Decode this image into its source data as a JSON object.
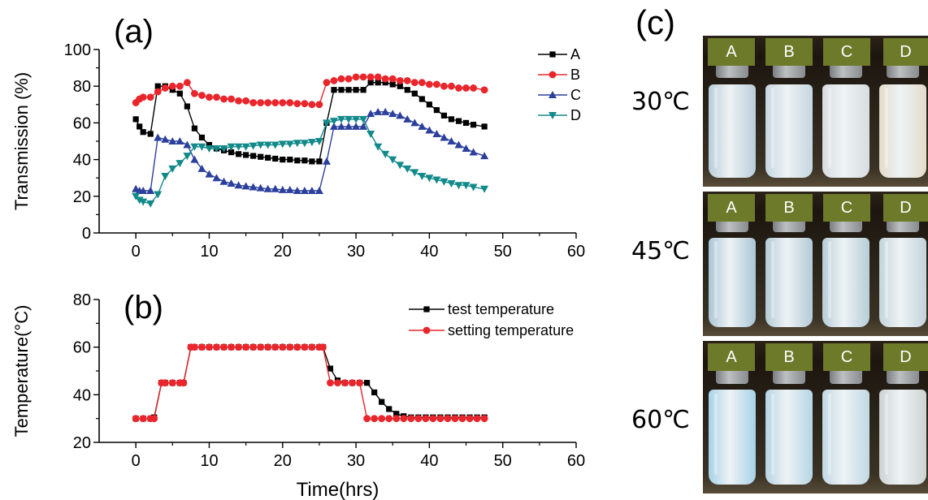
{
  "panel_letters": {
    "a": "(a)",
    "b": "(b)",
    "c": "(c)"
  },
  "photos": {
    "sample_labels": [
      "A",
      "B",
      "C",
      "D"
    ],
    "rows": [
      {
        "temperature": "30℃"
      },
      {
        "temperature": "45℃"
      },
      {
        "temperature": "60℃"
      }
    ]
  },
  "chart_data": [
    {
      "type": "line",
      "panel": "(a)",
      "xlabel": "",
      "ylabel": "Transmission (%)",
      "xlim": [
        -5,
        60
      ],
      "ylim": [
        0,
        100
      ],
      "xticks": [
        0,
        10,
        20,
        30,
        40,
        50,
        60
      ],
      "yticks": [
        0,
        20,
        40,
        60,
        80,
        100
      ],
      "legend": "top-right",
      "series": [
        {
          "name": "A",
          "color": "#000000",
          "marker": "square",
          "x": [
            0,
            0.5,
            1,
            2,
            3,
            4,
            5,
            6,
            7,
            8,
            9,
            10,
            11,
            12,
            13,
            14,
            15,
            16,
            17,
            18,
            19,
            20,
            21,
            22,
            23,
            24,
            25,
            26,
            27,
            28,
            29,
            30,
            31,
            32,
            33,
            34,
            35,
            36,
            37,
            38,
            39,
            40,
            41,
            42,
            43,
            44,
            45,
            46,
            47.5
          ],
          "y": [
            62,
            58,
            55,
            54,
            80,
            80,
            78,
            76,
            69,
            57,
            52,
            48,
            46,
            45,
            44,
            43,
            42.5,
            42,
            41.5,
            41,
            40.5,
            40,
            40,
            39.5,
            39.5,
            39,
            39,
            60,
            78,
            78,
            78,
            78,
            78,
            82,
            82,
            82,
            81,
            80,
            78,
            76,
            73,
            70,
            67,
            64,
            62,
            61,
            60,
            59,
            58
          ]
        },
        {
          "name": "B",
          "color": "#e8262c",
          "marker": "circle",
          "x": [
            0,
            0.5,
            1,
            2,
            3,
            4,
            5,
            6,
            7,
            8,
            9,
            10,
            11,
            12,
            13,
            14,
            15,
            16,
            17,
            18,
            19,
            20,
            21,
            22,
            23,
            24,
            25,
            26,
            27,
            28,
            29,
            30,
            31,
            32,
            33,
            34,
            35,
            36,
            37,
            38,
            39,
            40,
            41,
            42,
            43,
            44,
            45,
            46,
            47.5
          ],
          "y": [
            71,
            73,
            74,
            74,
            77,
            79,
            80,
            80,
            82,
            76,
            75,
            74,
            74,
            73,
            73,
            72,
            72,
            71,
            71,
            71,
            71,
            71,
            71,
            70.5,
            70.5,
            70,
            70,
            82,
            83,
            84,
            84,
            85,
            85,
            85,
            85,
            84,
            84,
            83,
            83,
            82,
            82,
            81,
            81,
            80,
            80,
            79,
            79,
            79,
            78
          ]
        },
        {
          "name": "C",
          "color": "#2b3f9c",
          "marker": "triangle-up",
          "x": [
            0,
            0.5,
            1,
            2,
            3,
            4,
            5,
            6,
            7,
            8,
            9,
            10,
            11,
            12,
            13,
            14,
            15,
            16,
            17,
            18,
            19,
            20,
            21,
            22,
            23,
            24,
            25,
            26,
            27,
            28,
            29,
            30,
            31,
            32,
            33,
            34,
            35,
            36,
            37,
            38,
            39,
            40,
            41,
            42,
            43,
            44,
            45,
            46,
            47.5
          ],
          "y": [
            24,
            23,
            23,
            23,
            52,
            51,
            50,
            50,
            48,
            40,
            35,
            32,
            30,
            28,
            27,
            26,
            25.5,
            25,
            24.5,
            24,
            24,
            23.5,
            23.5,
            23,
            23,
            23,
            23,
            39,
            58,
            58,
            58,
            58,
            58,
            65,
            66,
            66,
            65,
            64,
            62,
            60,
            58,
            56,
            54,
            52,
            50,
            48,
            46,
            44,
            42
          ]
        },
        {
          "name": "D",
          "color": "#138a8a",
          "marker": "triangle-down",
          "x": [
            0,
            0.5,
            1,
            2,
            3,
            4,
            5,
            6,
            7,
            8,
            9,
            10,
            11,
            12,
            13,
            14,
            15,
            16,
            17,
            18,
            19,
            20,
            21,
            22,
            23,
            24,
            25,
            26,
            27,
            28,
            29,
            30,
            31,
            32,
            33,
            34,
            35,
            36,
            37,
            38,
            39,
            40,
            41,
            42,
            43,
            44,
            45,
            46,
            47.5
          ],
          "y": [
            20,
            18,
            17,
            16,
            21,
            31,
            35,
            38,
            42,
            47,
            47,
            46,
            46,
            46,
            47,
            47,
            47,
            47.5,
            48,
            48,
            48,
            48.5,
            48.5,
            49,
            49,
            49.5,
            50,
            60,
            61,
            62,
            62,
            62,
            62,
            54,
            47,
            43,
            40,
            37,
            35,
            33,
            31,
            30,
            29,
            28,
            27,
            26,
            26,
            25,
            24
          ]
        }
      ]
    },
    {
      "type": "line",
      "panel": "(b)",
      "xlabel": "Time(hrs)",
      "ylabel": "Temperature(°C)",
      "xlim": [
        -5,
        60
      ],
      "ylim": [
        20,
        80
      ],
      "xticks": [
        0,
        10,
        20,
        30,
        40,
        50,
        60
      ],
      "yticks": [
        20,
        40,
        60,
        80
      ],
      "legend": "top-right",
      "series": [
        {
          "name": "test temperature",
          "color": "#000000",
          "marker": "square",
          "x": [
            0,
            1,
            2,
            2.5,
            3.5,
            4,
            5,
            6,
            6.5,
            7.5,
            8,
            9,
            10,
            11,
            12,
            13,
            14,
            15,
            16,
            17,
            18,
            19,
            20,
            21,
            22,
            23,
            24,
            25,
            25.5,
            26.5,
            27.5,
            28.5,
            29.5,
            30.5,
            31.5,
            32.5,
            33.5,
            34.5,
            35.5,
            36.5,
            37.5,
            38.5,
            39.5,
            40.5,
            41.5,
            42.5,
            43.5,
            44.5,
            45.5,
            46.5,
            47.5
          ],
          "y": [
            30,
            30,
            30,
            30.5,
            45,
            45,
            45,
            45,
            45,
            60,
            60,
            60,
            60,
            60,
            60,
            60,
            60,
            60,
            60,
            60,
            60,
            60,
            60,
            60,
            60,
            60,
            60,
            60,
            60,
            51,
            46,
            45,
            45,
            45,
            45,
            41,
            37,
            34,
            32,
            31,
            30.5,
            30.5,
            30.5,
            30.5,
            30.5,
            30.5,
            30.5,
            30.5,
            30.5,
            30.5,
            30.5
          ]
        },
        {
          "name": "setting temperature",
          "color": "#e8262c",
          "marker": "circle",
          "x": [
            0,
            1,
            2,
            2.5,
            3.5,
            4,
            5,
            6,
            6.5,
            7.5,
            8,
            9,
            10,
            11,
            12,
            13,
            14,
            15,
            16,
            17,
            18,
            19,
            20,
            21,
            22,
            23,
            24,
            25,
            25.5,
            26.5,
            27.5,
            28.5,
            29.5,
            30.5,
            31.5,
            32.5,
            33.5,
            34.5,
            35.5,
            36.5,
            37.5,
            38.5,
            39.5,
            40.5,
            41.5,
            42.5,
            43.5,
            44.5,
            45.5,
            46.5,
            47.5
          ],
          "y": [
            30,
            30,
            30,
            30,
            45,
            45,
            45,
            45,
            45,
            60,
            60,
            60,
            60,
            60,
            60,
            60,
            60,
            60,
            60,
            60,
            60,
            60,
            60,
            60,
            60,
            60,
            60,
            60,
            60,
            45,
            45,
            45,
            45,
            45,
            30,
            30,
            30,
            30,
            30,
            30,
            30,
            30,
            30,
            30,
            30,
            30,
            30,
            30,
            30,
            30,
            30
          ]
        }
      ]
    }
  ]
}
